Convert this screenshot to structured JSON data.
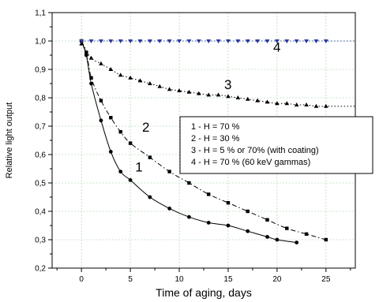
{
  "chart_data": {
    "type": "line",
    "title": "",
    "xlabel": "Time of aging, days",
    "ylabel": "Relative light output",
    "xlim": [
      -3,
      28
    ],
    "ylim": [
      0.2,
      1.1
    ],
    "xticks": [
      0,
      5,
      10,
      15,
      20,
      25
    ],
    "yticks": [
      0.2,
      0.3,
      0.4,
      0.5,
      0.6,
      0.7,
      0.8,
      0.9,
      1.0,
      1.1
    ],
    "ytick_labels": [
      "0,2",
      "0,3",
      "0,4",
      "0,5",
      "0,6",
      "0,7",
      "0,8",
      "0,9",
      "1,0",
      "1,1"
    ],
    "grid": true,
    "legend_position": "center-right",
    "legend": [
      "1 - H = 70 %",
      "2 - H = 30 %",
      "3 - H = 5 % or 70% (with coating)",
      "4 - H = 70 % (60 keV gammas)"
    ],
    "series": [
      {
        "name": "1",
        "label": "1",
        "style": "solid",
        "marker": "circle",
        "color": "#000000",
        "x": [
          0,
          0.5,
          1,
          2,
          3,
          4,
          5,
          7,
          9,
          11,
          13,
          15,
          17,
          19,
          20,
          22
        ],
        "y": [
          1.0,
          0.95,
          0.85,
          0.72,
          0.61,
          0.54,
          0.51,
          0.45,
          0.41,
          0.38,
          0.36,
          0.35,
          0.33,
          0.31,
          0.3,
          0.29
        ],
        "label_at": [
          5.5,
          0.54
        ]
      },
      {
        "name": "2",
        "label": "2",
        "style": "dashdot",
        "marker": "square",
        "color": "#000000",
        "x": [
          0,
          0.5,
          1,
          2,
          3,
          4,
          5,
          7,
          9,
          11,
          13,
          15,
          17,
          19,
          21,
          23,
          25
        ],
        "y": [
          1.0,
          0.96,
          0.87,
          0.79,
          0.73,
          0.68,
          0.64,
          0.59,
          0.54,
          0.5,
          0.46,
          0.43,
          0.4,
          0.37,
          0.34,
          0.32,
          0.3
        ],
        "label_at": [
          6.2,
          0.68
        ]
      },
      {
        "name": "3",
        "label": "3",
        "style": "dotted",
        "marker": "triangle-up",
        "color": "#000000",
        "x": [
          0,
          1,
          2,
          3,
          4,
          5,
          6,
          7,
          8,
          9,
          10,
          11,
          12,
          13,
          14,
          15,
          16,
          17,
          18,
          19,
          20,
          21,
          22,
          23,
          24,
          25
        ],
        "y": [
          0.99,
          0.94,
          0.92,
          0.9,
          0.88,
          0.87,
          0.86,
          0.85,
          0.84,
          0.83,
          0.825,
          0.82,
          0.815,
          0.81,
          0.81,
          0.805,
          0.8,
          0.795,
          0.79,
          0.785,
          0.78,
          0.78,
          0.775,
          0.775,
          0.77,
          0.77
        ],
        "extend_to": 28,
        "label_at": [
          14.6,
          0.83
        ]
      },
      {
        "name": "4",
        "label": "4",
        "style": "dotted",
        "marker": "triangle-down",
        "color": "#2a3a9e",
        "x": [
          0,
          1,
          2,
          3,
          4,
          5,
          6,
          7,
          8,
          9,
          10,
          11,
          12,
          13,
          14,
          15,
          16,
          17,
          18,
          19,
          20,
          21,
          22,
          23,
          24,
          25
        ],
        "y": [
          1.0,
          1.0,
          1.0,
          1.0,
          1.0,
          1.0,
          1.0,
          1.0,
          1.0,
          1.0,
          1.0,
          1.0,
          1.0,
          1.0,
          1.0,
          1.0,
          1.0,
          1.0,
          1.0,
          1.0,
          1.0,
          1.0,
          1.0,
          1.0,
          1.0,
          1.0
        ],
        "extend_to": 28,
        "label_at": [
          19.6,
          0.962
        ]
      }
    ]
  }
}
